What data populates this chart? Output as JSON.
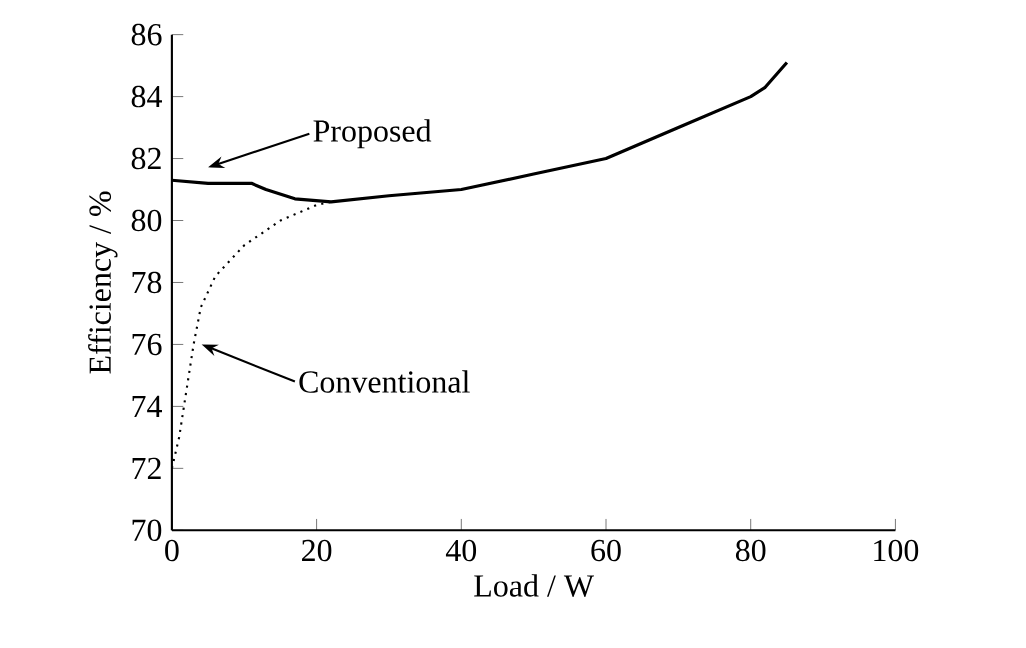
{
  "chart_data": {
    "type": "line",
    "xlabel": "Load / W",
    "ylabel": "Efficiency / %",
    "xlim": [
      0,
      100
    ],
    "ylim": [
      70,
      86
    ],
    "xticks": [
      0,
      20,
      40,
      60,
      80,
      100
    ],
    "yticks": [
      70,
      72,
      74,
      76,
      78,
      80,
      82,
      84,
      86
    ],
    "grid": false,
    "marker": "none",
    "series": [
      {
        "color": "#000000",
        "line_style": "solid",
        "x": [
          0,
          5,
          11,
          13,
          17,
          22,
          30,
          40,
          50,
          60,
          70,
          80,
          82,
          85
        ],
        "values": [
          81.3,
          81.2,
          81.2,
          81.0,
          80.7,
          80.6,
          80.8,
          81.0,
          81.5,
          82.0,
          83.0,
          84.0,
          84.3,
          85.1
        ]
      },
      {
        "color": "#000000",
        "line_style": "dotted",
        "x": [
          0,
          1,
          2,
          3,
          4,
          6,
          10,
          15,
          20,
          22
        ],
        "values": [
          72,
          73,
          74.5,
          76,
          77.2,
          78.2,
          79.2,
          80,
          80.5,
          80.6
        ]
      }
    ],
    "annotations": [
      "Proposed",
      "Conventional"
    ]
  }
}
